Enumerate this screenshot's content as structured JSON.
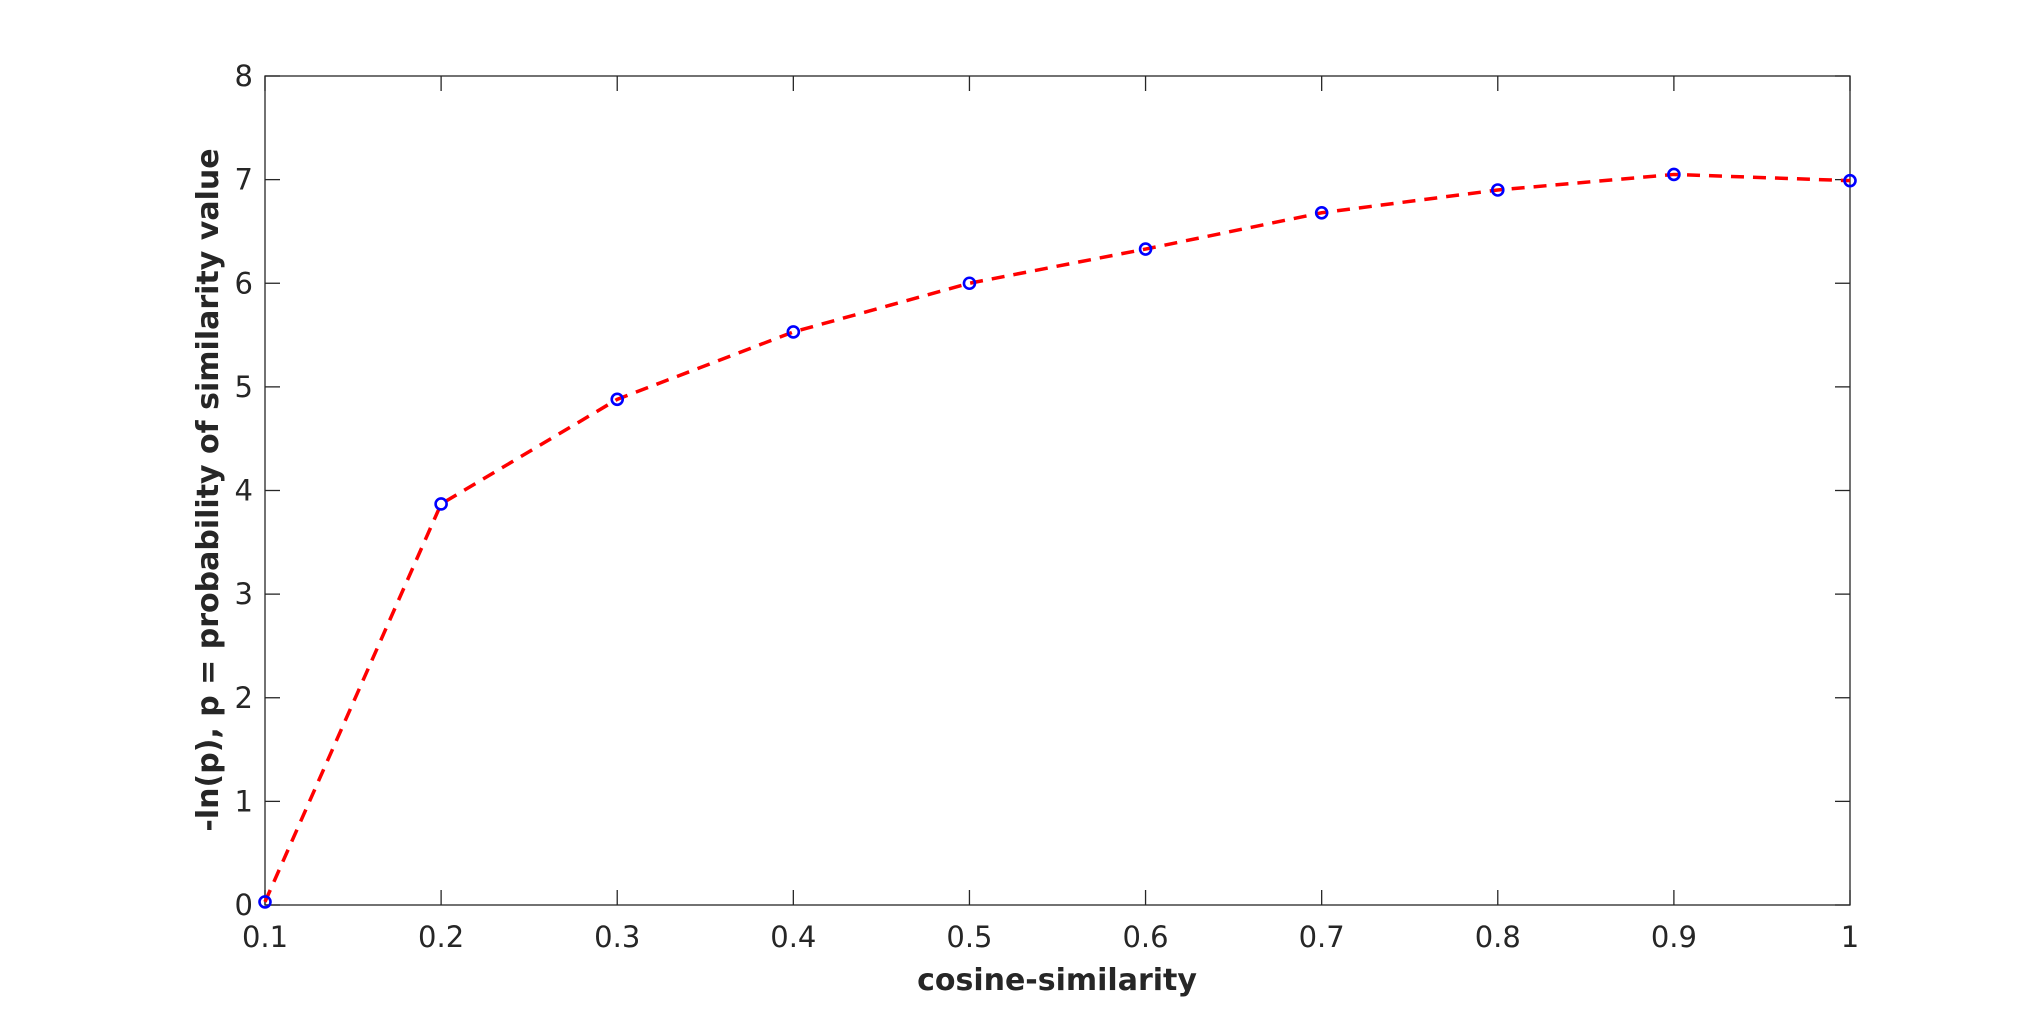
{
  "chart_data": {
    "type": "line",
    "title": "",
    "xlabel": "cosine-similarity",
    "ylabel": "-ln(p), p = probability of similarity value",
    "xlim": [
      0.1,
      1
    ],
    "ylim": [
      0,
      8
    ],
    "xticks": [
      "0.1",
      "0.2",
      "0.3",
      "0.4",
      "0.5",
      "0.6",
      "0.7",
      "0.8",
      "0.9",
      "1"
    ],
    "yticks": [
      "0",
      "1",
      "2",
      "3",
      "4",
      "5",
      "6",
      "7",
      "8"
    ],
    "grid": false,
    "series": [
      {
        "style": "markers",
        "marker": "circle",
        "color": "#0000ff",
        "x": [
          0.1,
          0.2,
          0.3,
          0.4,
          0.5,
          0.6,
          0.7,
          0.8,
          0.9,
          1.0
        ],
        "y": [
          0.03,
          3.87,
          4.88,
          5.53,
          6.0,
          6.33,
          6.68,
          6.9,
          7.05,
          6.99
        ]
      },
      {
        "style": "dashed-line",
        "color": "#ff0000",
        "x": [
          0.1,
          0.2,
          0.3,
          0.4,
          0.5,
          0.6,
          0.7,
          0.8,
          0.9,
          1.0
        ],
        "y": [
          0.03,
          3.87,
          4.88,
          5.53,
          6.0,
          6.33,
          6.68,
          6.9,
          7.05,
          6.99
        ]
      }
    ]
  }
}
